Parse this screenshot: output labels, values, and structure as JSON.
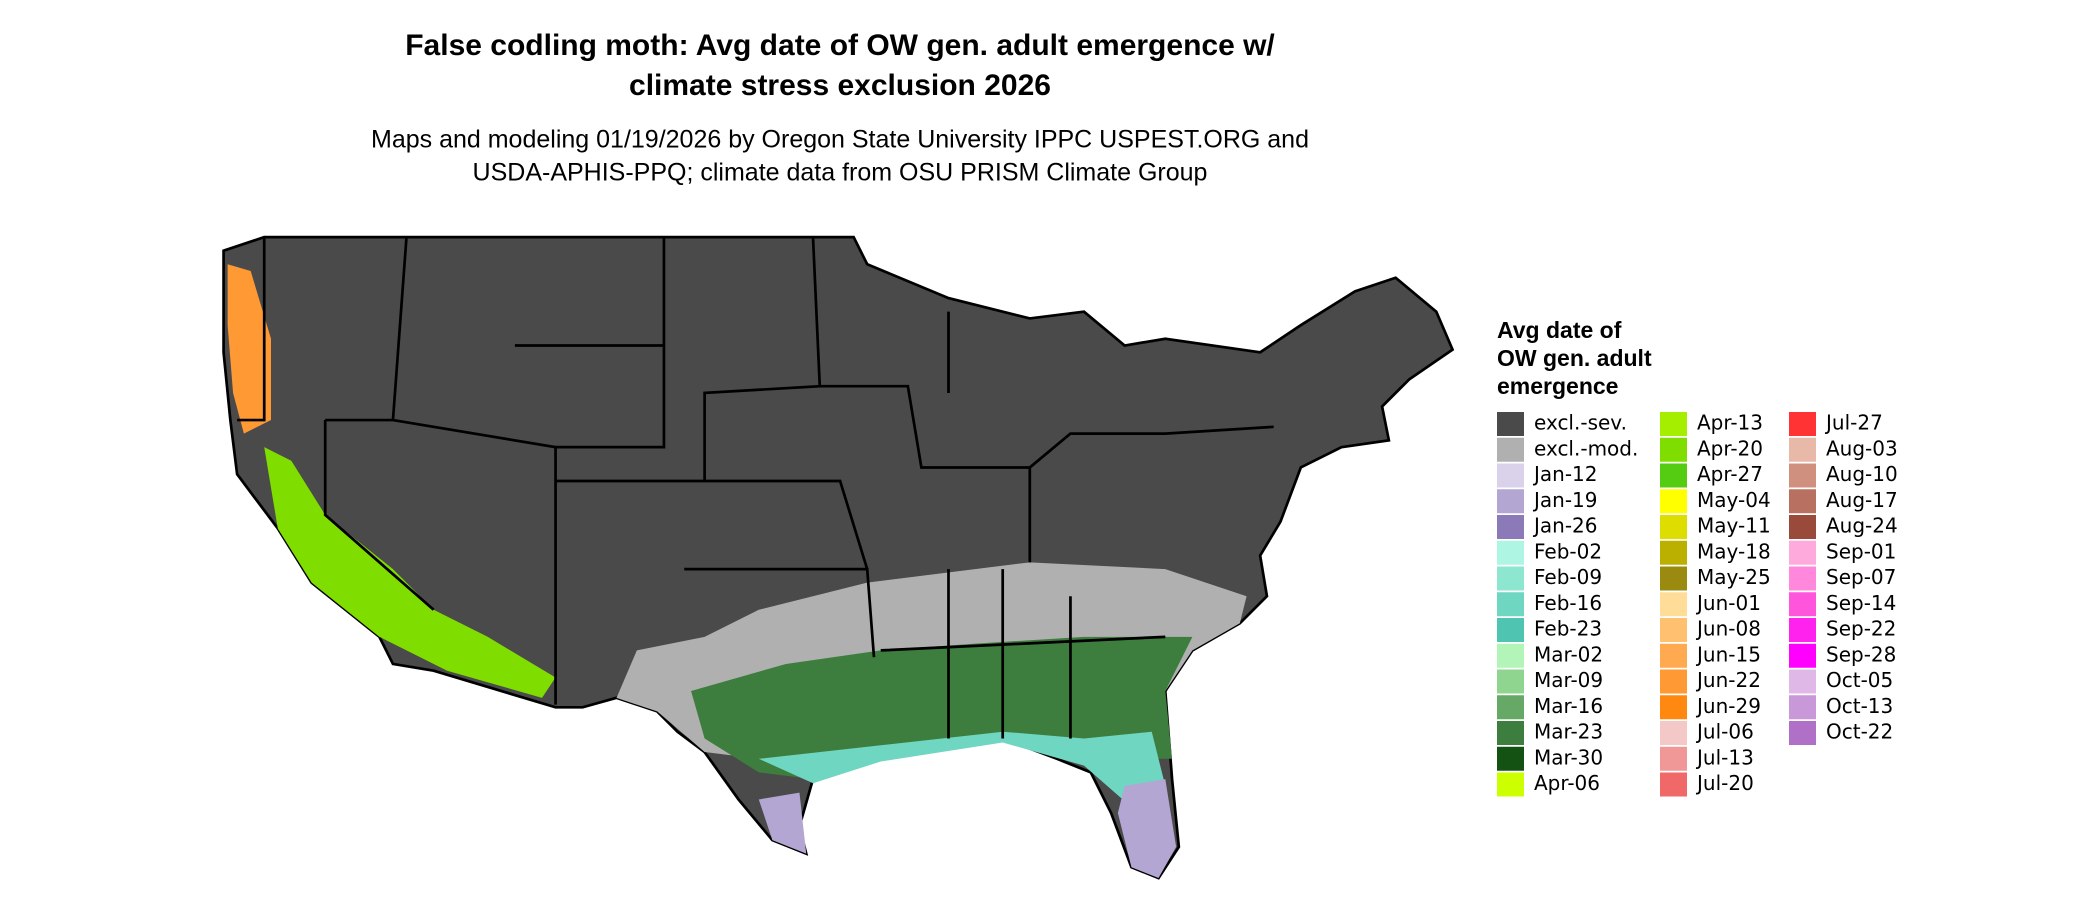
{
  "header": {
    "title": [
      "False codling moth: Avg date of OW gen. adult emergence w/",
      "climate stress exclusion 2026"
    ],
    "subtitle": [
      "Maps and modeling 01/19/2026 by Oregon State University IPPC USPEST.ORG and",
      "USDA-APHIS-PPQ; climate data from OSU PRISM Climate Group"
    ]
  },
  "legend": {
    "title": [
      "Avg date of",
      "OW gen. adult",
      "emergence"
    ],
    "items": [
      {
        "label": "excl.-sev.",
        "color": "#4a4a4a"
      },
      {
        "label": "excl.-mod.",
        "color": "#b0b0b0"
      },
      {
        "label": "Jan-12",
        "color": "#d9d2ea"
      },
      {
        "label": "Jan-19",
        "color": "#b3a6d2"
      },
      {
        "label": "Jan-26",
        "color": "#8c7ab8"
      },
      {
        "label": "Feb-02",
        "color": "#aef5e3"
      },
      {
        "label": "Feb-09",
        "color": "#8de6d0"
      },
      {
        "label": "Feb-16",
        "color": "#6fd6c1"
      },
      {
        "label": "Feb-23",
        "color": "#4fc4b0"
      },
      {
        "label": "Mar-02",
        "color": "#b3f5b8"
      },
      {
        "label": "Mar-09",
        "color": "#8fd48f"
      },
      {
        "label": "Mar-16",
        "color": "#66a866"
      },
      {
        "label": "Mar-23",
        "color": "#3d7d3d"
      },
      {
        "label": "Mar-30",
        "color": "#145214"
      },
      {
        "label": "Apr-06",
        "color": "#ccff00"
      },
      {
        "label": "Apr-13",
        "color": "#a6ee00"
      },
      {
        "label": "Apr-20",
        "color": "#7fdd00"
      },
      {
        "label": "Apr-27",
        "color": "#55cc11"
      },
      {
        "label": "May-04",
        "color": "#ffff00"
      },
      {
        "label": "May-11",
        "color": "#dddd00"
      },
      {
        "label": "May-18",
        "color": "#bbb000"
      },
      {
        "label": "May-25",
        "color": "#9a8a10"
      },
      {
        "label": "Jun-01",
        "color": "#ffdd99"
      },
      {
        "label": "Jun-08",
        "color": "#ffc070"
      },
      {
        "label": "Jun-15",
        "color": "#ffaa50"
      },
      {
        "label": "Jun-22",
        "color": "#ff9933"
      },
      {
        "label": "Jun-29",
        "color": "#ff8811"
      },
      {
        "label": "Jul-06",
        "color": "#f5c8c8"
      },
      {
        "label": "Jul-13",
        "color": "#f09898"
      },
      {
        "label": "Jul-20",
        "color": "#f06868"
      },
      {
        "label": "Jul-27",
        "color": "#ff3333"
      },
      {
        "label": "Aug-03",
        "color": "#e8b8a8"
      },
      {
        "label": "Aug-10",
        "color": "#d09080"
      },
      {
        "label": "Aug-17",
        "color": "#b87060"
      },
      {
        "label": "Aug-24",
        "color": "#9a4a3a"
      },
      {
        "label": "Sep-01",
        "color": "#ffaadd"
      },
      {
        "label": "Sep-07",
        "color": "#ff88dd"
      },
      {
        "label": "Sep-14",
        "color": "#ff55dd"
      },
      {
        "label": "Sep-22",
        "color": "#ff22ee"
      },
      {
        "label": "Sep-28",
        "color": "#ff00ff"
      },
      {
        "label": "Oct-05",
        "color": "#e0b8e8"
      },
      {
        "label": "Oct-13",
        "color": "#c898d8"
      },
      {
        "label": "Oct-22",
        "color": "#b070c8"
      }
    ]
  }
}
